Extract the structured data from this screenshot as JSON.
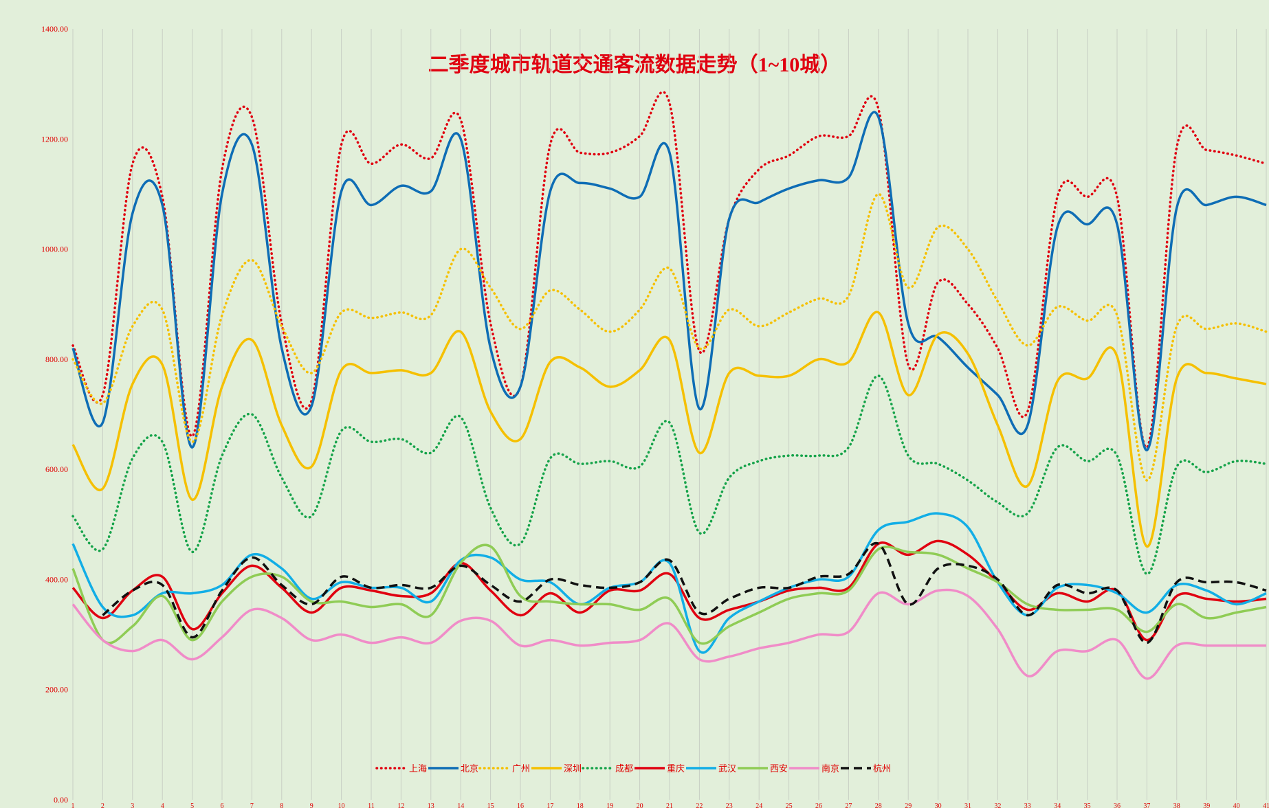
{
  "chart_data": {
    "type": "line",
    "title": "二季度城市轨道交通客流数据走势（1~10城）",
    "categories": [
      "1",
      "2",
      "3",
      "4",
      "5",
      "6",
      "7",
      "8",
      "9",
      "10",
      "11",
      "12",
      "13",
      "14",
      "15",
      "16",
      "17",
      "18",
      "19",
      "20",
      "21",
      "22",
      "23",
      "24",
      "25",
      "26",
      "27",
      "28",
      "29",
      "30",
      "31",
      "32",
      "33",
      "34",
      "35",
      "36",
      "37",
      "38",
      "39",
      "40",
      "41"
    ],
    "ylim": [
      0,
      1400
    ],
    "yticks": [
      {
        "value": 0,
        "label": "0.00"
      },
      {
        "value": 200,
        "label": "200.00"
      },
      {
        "value": 400,
        "label": "400.00"
      },
      {
        "value": 600,
        "label": "600.00"
      },
      {
        "value": 800,
        "label": "800.00"
      },
      {
        "value": 1000,
        "label": "1000.00"
      },
      {
        "value": 1200,
        "label": "1200.00"
      },
      {
        "value": 1400,
        "label": "1400.00"
      }
    ],
    "grid": "x",
    "legend": "bottom",
    "series": [
      {
        "name": "上海",
        "color": "#e00010",
        "style": "dotted",
        "values": [
          825,
          735,
          1155,
          1095,
          660,
          1145,
          1240,
          865,
          725,
          1190,
          1155,
          1190,
          1165,
          1235,
          865,
          750,
          1190,
          1175,
          1175,
          1205,
          1265,
          815,
          1055,
          1145,
          1170,
          1205,
          1205,
          1255,
          790,
          940,
          900,
          820,
          705,
          1095,
          1095,
          1095,
          640,
          1185,
          1180,
          1170,
          1155
        ]
      },
      {
        "name": "北京",
        "color": "#0e6db5",
        "style": "solid",
        "values": [
          820,
          685,
          1065,
          1080,
          640,
          1100,
          1190,
          820,
          715,
          1105,
          1080,
          1115,
          1105,
          1200,
          820,
          750,
          1105,
          1120,
          1110,
          1095,
          1175,
          710,
          1055,
          1085,
          1110,
          1125,
          1130,
          1240,
          865,
          840,
          785,
          735,
          680,
          1040,
          1045,
          1045,
          635,
          1075,
          1080,
          1095,
          1080
        ]
      },
      {
        "name": "广州",
        "color": "#f5c000",
        "style": "dotted",
        "values": [
          800,
          720,
          860,
          890,
          650,
          880,
          980,
          860,
          775,
          885,
          875,
          885,
          880,
          1000,
          930,
          855,
          925,
          890,
          850,
          890,
          965,
          820,
          890,
          860,
          885,
          910,
          915,
          1100,
          930,
          1040,
          1000,
          905,
          825,
          895,
          870,
          880,
          580,
          860,
          855,
          865,
          850
        ]
      },
      {
        "name": "深圳",
        "color": "#f5c000",
        "style": "solid",
        "values": [
          645,
          565,
          755,
          790,
          545,
          750,
          835,
          680,
          605,
          780,
          775,
          780,
          775,
          850,
          705,
          655,
          795,
          785,
          750,
          780,
          835,
          630,
          775,
          770,
          770,
          800,
          795,
          885,
          735,
          845,
          810,
          680,
          570,
          760,
          765,
          805,
          460,
          765,
          775,
          765,
          755
        ]
      },
      {
        "name": "成都",
        "color": "#16a34a",
        "style": "dotted",
        "values": [
          515,
          455,
          620,
          650,
          450,
          625,
          700,
          585,
          515,
          670,
          650,
          655,
          630,
          695,
          530,
          465,
          620,
          610,
          615,
          605,
          685,
          485,
          585,
          615,
          625,
          625,
          640,
          770,
          625,
          610,
          580,
          540,
          520,
          640,
          615,
          625,
          410,
          605,
          595,
          615,
          610
        ]
      },
      {
        "name": "重庆",
        "color": "#e00010",
        "style": "solid",
        "values": [
          385,
          330,
          380,
          405,
          310,
          375,
          425,
          385,
          340,
          385,
          380,
          370,
          375,
          430,
          380,
          335,
          375,
          340,
          380,
          380,
          410,
          330,
          345,
          360,
          380,
          385,
          385,
          465,
          445,
          470,
          445,
          395,
          345,
          375,
          360,
          380,
          290,
          370,
          365,
          360,
          365
        ]
      },
      {
        "name": "武汉",
        "color": "#12aee6",
        "style": "solid",
        "values": [
          465,
          350,
          335,
          375,
          375,
          390,
          445,
          420,
          365,
          395,
          385,
          385,
          360,
          435,
          440,
          400,
          395,
          355,
          385,
          395,
          430,
          270,
          330,
          360,
          385,
          400,
          405,
          490,
          505,
          520,
          495,
          395,
          335,
          385,
          390,
          375,
          340,
          390,
          380,
          355,
          375
        ]
      },
      {
        "name": "西安",
        "color": "#8fcc55",
        "style": "solid",
        "values": [
          420,
          290,
          315,
          370,
          290,
          360,
          405,
          405,
          360,
          360,
          350,
          355,
          335,
          430,
          460,
          370,
          360,
          355,
          355,
          345,
          365,
          285,
          315,
          340,
          365,
          375,
          380,
          455,
          450,
          445,
          420,
          395,
          355,
          345,
          345,
          345,
          305,
          355,
          330,
          340,
          350
        ]
      },
      {
        "name": "南京",
        "color": "#f08cc8",
        "style": "solid",
        "values": [
          355,
          290,
          270,
          290,
          255,
          295,
          345,
          330,
          290,
          300,
          285,
          295,
          285,
          325,
          325,
          280,
          290,
          280,
          285,
          290,
          320,
          255,
          260,
          275,
          285,
          300,
          305,
          375,
          355,
          380,
          370,
          310,
          225,
          270,
          270,
          290,
          220,
          280,
          280,
          280,
          280
        ]
      },
      {
        "name": "杭州",
        "color": "#111111",
        "style": "dashed",
        "values": [
          null,
          335,
          380,
          390,
          295,
          380,
          440,
          390,
          355,
          405,
          385,
          390,
          385,
          425,
          390,
          360,
          400,
          390,
          385,
          395,
          435,
          340,
          365,
          385,
          385,
          405,
          410,
          465,
          355,
          420,
          425,
          400,
          335,
          390,
          375,
          380,
          285,
          395,
          395,
          395,
          380
        ]
      }
    ]
  }
}
